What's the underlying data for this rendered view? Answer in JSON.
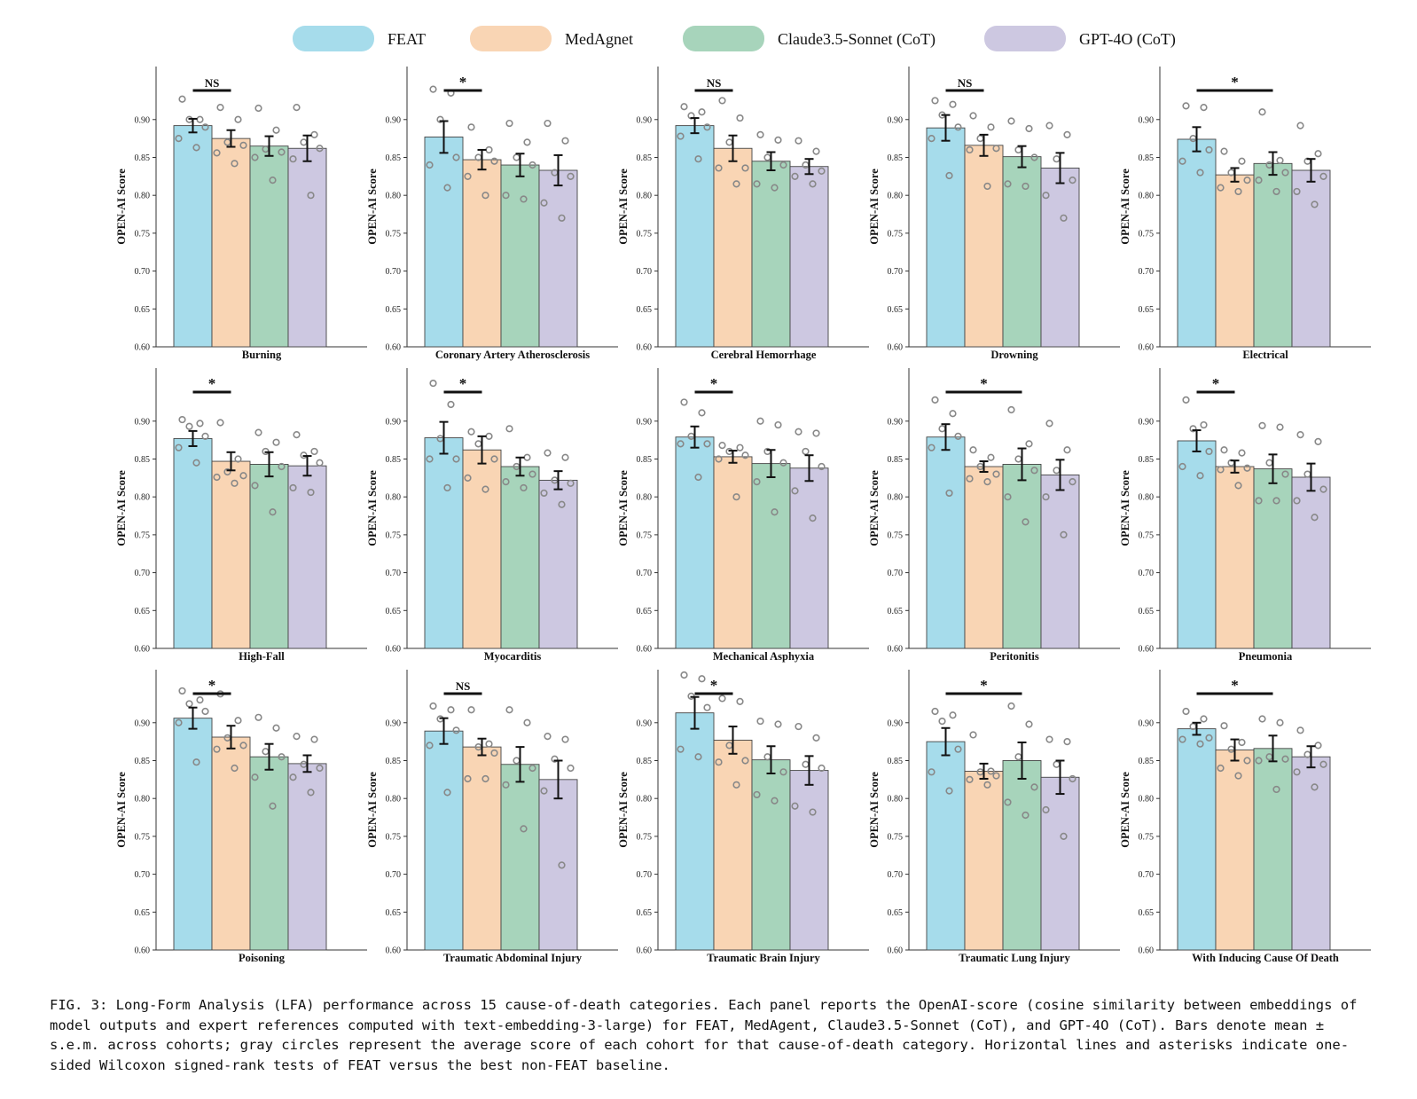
{
  "colors": {
    "FEAT": "#a6dceb",
    "MedAgnet": "#f9d5b4",
    "Claude3.5-Sonnet (CoT)": "#a7d4bb",
    "GPT-4O (CoT)": "#cdc8e1",
    "dots": "#888888",
    "errorbar": "#111111"
  },
  "caption": "FIG. 3: Long-Form Analysis (LFA) performance across 15 cause-of-death categories. Each panel reports the OpenAI-score (cosine similarity between embeddings of model outputs and expert references computed with text-embedding-3-large) for FEAT, MedAgent, Claude3.5-Sonnet (CoT), and GPT-4O (CoT). Bars denote mean ± s.e.m. across cohorts; gray circles represent the average score of each cohort for that cause-of-death category. Horizontal lines and asterisks indicate one-sided Wilcoxon signed-rank tests of FEAT versus the best non-FEAT baseline.",
  "chart_data": {
    "type": "bar",
    "legend": [
      "FEAT",
      "MedAgnet",
      "Claude3.5-Sonnet (CoT)",
      "GPT-4O (CoT)"
    ],
    "legend_position": "top",
    "ylabel": "OPEN-AI Score",
    "ylim": [
      0.6,
      0.97
    ],
    "yticks": [
      "0.60",
      "0.65",
      "0.70",
      "0.75",
      "0.80",
      "0.85",
      "0.90"
    ],
    "panels": [
      {
        "category": "Burning",
        "means": [
          0.892,
          0.875,
          0.865,
          0.862
        ],
        "sem": [
          0.009,
          0.011,
          0.013,
          0.017
        ],
        "sig": "NS",
        "sig_span": [
          0,
          1
        ],
        "points": [
          [
            0.927,
            0.9,
            0.9,
            0.89,
            0.875,
            0.863
          ],
          [
            0.916,
            0.9,
            0.87,
            0.866,
            0.856,
            0.842
          ],
          [
            0.915,
            0.886,
            0.861,
            0.857,
            0.85,
            0.82
          ],
          [
            0.916,
            0.88,
            0.87,
            0.862,
            0.848,
            0.8
          ]
        ]
      },
      {
        "category": "Coronary Artery Atherosclerosis",
        "means": [
          0.877,
          0.847,
          0.84,
          0.833
        ],
        "sem": [
          0.021,
          0.013,
          0.015,
          0.02
        ],
        "sig": "*",
        "sig_span": [
          0,
          1
        ],
        "points": [
          [
            0.94,
            0.935,
            0.9,
            0.85,
            0.84,
            0.81
          ],
          [
            0.89,
            0.86,
            0.85,
            0.845,
            0.825,
            0.8
          ],
          [
            0.895,
            0.87,
            0.85,
            0.84,
            0.8,
            0.795
          ],
          [
            0.895,
            0.872,
            0.83,
            0.825,
            0.79,
            0.77
          ]
        ]
      },
      {
        "category": "Cerebral Hemorrhage",
        "means": [
          0.892,
          0.862,
          0.845,
          0.838
        ],
        "sem": [
          0.01,
          0.017,
          0.012,
          0.01
        ],
        "sig": "NS",
        "sig_span": [
          0,
          1
        ],
        "points": [
          [
            0.917,
            0.91,
            0.905,
            0.89,
            0.878,
            0.848
          ],
          [
            0.925,
            0.902,
            0.87,
            0.836,
            0.836,
            0.815
          ],
          [
            0.88,
            0.873,
            0.85,
            0.84,
            0.815,
            0.81
          ],
          [
            0.872,
            0.858,
            0.84,
            0.832,
            0.825,
            0.815
          ]
        ]
      },
      {
        "category": "Drowning",
        "means": [
          0.889,
          0.866,
          0.851,
          0.836
        ],
        "sem": [
          0.017,
          0.014,
          0.014,
          0.02
        ],
        "sig": "NS",
        "sig_span": [
          0,
          1
        ],
        "points": [
          [
            0.925,
            0.92,
            0.906,
            0.89,
            0.875,
            0.826
          ],
          [
            0.905,
            0.89,
            0.875,
            0.862,
            0.86,
            0.812
          ],
          [
            0.898,
            0.888,
            0.86,
            0.85,
            0.815,
            0.812
          ],
          [
            0.892,
            0.88,
            0.848,
            0.82,
            0.8,
            0.77
          ]
        ]
      },
      {
        "category": "Electrical",
        "means": [
          0.874,
          0.827,
          0.842,
          0.833
        ],
        "sem": [
          0.016,
          0.009,
          0.015,
          0.015
        ],
        "sig": "*",
        "sig_span": [
          0,
          2
        ],
        "points": [
          [
            0.918,
            0.916,
            0.875,
            0.86,
            0.845,
            0.83
          ],
          [
            0.858,
            0.845,
            0.83,
            0.82,
            0.81,
            0.805
          ],
          [
            0.91,
            0.846,
            0.84,
            0.83,
            0.82,
            0.805
          ],
          [
            0.892,
            0.855,
            0.845,
            0.825,
            0.805,
            0.788
          ]
        ]
      },
      {
        "category": "High-Fall",
        "means": [
          0.877,
          0.847,
          0.843,
          0.841
        ],
        "sem": [
          0.01,
          0.012,
          0.016,
          0.013
        ],
        "sig": "*",
        "sig_span": [
          0,
          1
        ],
        "points": [
          [
            0.902,
            0.897,
            0.893,
            0.88,
            0.865,
            0.845
          ],
          [
            0.898,
            0.85,
            0.833,
            0.828,
            0.826,
            0.818
          ],
          [
            0.885,
            0.872,
            0.86,
            0.84,
            0.815,
            0.78
          ],
          [
            0.882,
            0.86,
            0.855,
            0.845,
            0.812,
            0.806
          ]
        ]
      },
      {
        "category": "Myocarditis",
        "means": [
          0.878,
          0.862,
          0.84,
          0.822
        ],
        "sem": [
          0.021,
          0.018,
          0.012,
          0.012
        ],
        "sig": "*",
        "sig_span": [
          0,
          1
        ],
        "points": [
          [
            0.95,
            0.922,
            0.877,
            0.85,
            0.85,
            0.812
          ],
          [
            0.886,
            0.88,
            0.87,
            0.85,
            0.825,
            0.81
          ],
          [
            0.89,
            0.852,
            0.84,
            0.83,
            0.82,
            0.812
          ],
          [
            0.858,
            0.852,
            0.822,
            0.818,
            0.805,
            0.79
          ]
        ]
      },
      {
        "category": "Mechanical Asphyxia",
        "means": [
          0.879,
          0.853,
          0.844,
          0.838
        ],
        "sem": [
          0.014,
          0.008,
          0.018,
          0.017
        ],
        "sig": "*",
        "sig_span": [
          0,
          1
        ],
        "points": [
          [
            0.925,
            0.911,
            0.88,
            0.87,
            0.87,
            0.826
          ],
          [
            0.868,
            0.865,
            0.86,
            0.855,
            0.85,
            0.8
          ],
          [
            0.9,
            0.895,
            0.86,
            0.845,
            0.82,
            0.78
          ],
          [
            0.886,
            0.884,
            0.86,
            0.84,
            0.808,
            0.772
          ]
        ]
      },
      {
        "category": "Peritonitis",
        "means": [
          0.879,
          0.84,
          0.843,
          0.829
        ],
        "sem": [
          0.017,
          0.007,
          0.021,
          0.02
        ],
        "sig": "*",
        "sig_span": [
          0,
          2
        ],
        "points": [
          [
            0.928,
            0.91,
            0.89,
            0.88,
            0.865,
            0.805
          ],
          [
            0.862,
            0.852,
            0.84,
            0.83,
            0.824,
            0.82
          ],
          [
            0.915,
            0.87,
            0.85,
            0.835,
            0.8,
            0.767
          ],
          [
            0.897,
            0.862,
            0.835,
            0.82,
            0.8,
            0.75
          ]
        ]
      },
      {
        "category": "Pneumonia",
        "means": [
          0.874,
          0.84,
          0.837,
          0.826
        ],
        "sem": [
          0.014,
          0.008,
          0.019,
          0.018
        ],
        "sig": "*",
        "sig_span": [
          0,
          1
        ],
        "points": [
          [
            0.928,
            0.895,
            0.89,
            0.86,
            0.84,
            0.828
          ],
          [
            0.862,
            0.858,
            0.845,
            0.838,
            0.836,
            0.815
          ],
          [
            0.894,
            0.892,
            0.845,
            0.83,
            0.795,
            0.795
          ],
          [
            0.882,
            0.873,
            0.83,
            0.81,
            0.795,
            0.773
          ]
        ]
      },
      {
        "category": "Poisoning",
        "means": [
          0.906,
          0.881,
          0.855,
          0.846
        ],
        "sem": [
          0.014,
          0.015,
          0.017,
          0.011
        ],
        "sig": "*",
        "sig_span": [
          0,
          1
        ],
        "points": [
          [
            0.942,
            0.93,
            0.925,
            0.915,
            0.9,
            0.848
          ],
          [
            0.938,
            0.903,
            0.88,
            0.87,
            0.865,
            0.84
          ],
          [
            0.907,
            0.893,
            0.862,
            0.855,
            0.828,
            0.79
          ],
          [
            0.882,
            0.878,
            0.845,
            0.84,
            0.828,
            0.808
          ]
        ]
      },
      {
        "category": "Traumatic Abdominal Injury",
        "means": [
          0.889,
          0.868,
          0.845,
          0.825
        ],
        "sem": [
          0.017,
          0.011,
          0.023,
          0.025
        ],
        "sig": "NS",
        "sig_span": [
          0,
          1
        ],
        "points": [
          [
            0.922,
            0.917,
            0.905,
            0.89,
            0.87,
            0.808
          ],
          [
            0.917,
            0.872,
            0.868,
            0.86,
            0.826,
            0.826
          ],
          [
            0.917,
            0.9,
            0.85,
            0.84,
            0.818,
            0.76
          ],
          [
            0.882,
            0.878,
            0.852,
            0.84,
            0.81,
            0.712
          ]
        ]
      },
      {
        "category": "Traumatic Brain Injury",
        "means": [
          0.913,
          0.877,
          0.851,
          0.837
        ],
        "sem": [
          0.021,
          0.018,
          0.018,
          0.019
        ],
        "sig": "*",
        "sig_span": [
          0,
          1
        ],
        "points": [
          [
            0.963,
            0.958,
            0.935,
            0.92,
            0.865,
            0.855
          ],
          [
            0.932,
            0.928,
            0.87,
            0.85,
            0.848,
            0.818
          ],
          [
            0.902,
            0.898,
            0.855,
            0.835,
            0.805,
            0.797
          ],
          [
            0.895,
            0.88,
            0.845,
            0.84,
            0.79,
            0.782
          ]
        ]
      },
      {
        "category": "Traumatic Lung Injury",
        "means": [
          0.875,
          0.836,
          0.85,
          0.828
        ],
        "sem": [
          0.018,
          0.01,
          0.024,
          0.022
        ],
        "sig": "*",
        "sig_span": [
          0,
          2
        ],
        "points": [
          [
            0.915,
            0.91,
            0.902,
            0.865,
            0.835,
            0.81
          ],
          [
            0.884,
            0.836,
            0.835,
            0.83,
            0.825,
            0.818
          ],
          [
            0.922,
            0.898,
            0.855,
            0.815,
            0.795,
            0.778
          ],
          [
            0.878,
            0.875,
            0.845,
            0.826,
            0.785,
            0.75
          ]
        ]
      },
      {
        "category": "With Inducing Cause Of Death",
        "means": [
          0.892,
          0.864,
          0.866,
          0.855
        ],
        "sem": [
          0.008,
          0.014,
          0.017,
          0.014
        ],
        "sig": "*",
        "sig_span": [
          0,
          2
        ],
        "points": [
          [
            0.915,
            0.905,
            0.895,
            0.88,
            0.878,
            0.872
          ],
          [
            0.896,
            0.874,
            0.865,
            0.85,
            0.84,
            0.83
          ],
          [
            0.905,
            0.9,
            0.855,
            0.852,
            0.85,
            0.812
          ],
          [
            0.89,
            0.87,
            0.858,
            0.845,
            0.835,
            0.815
          ]
        ]
      }
    ]
  }
}
